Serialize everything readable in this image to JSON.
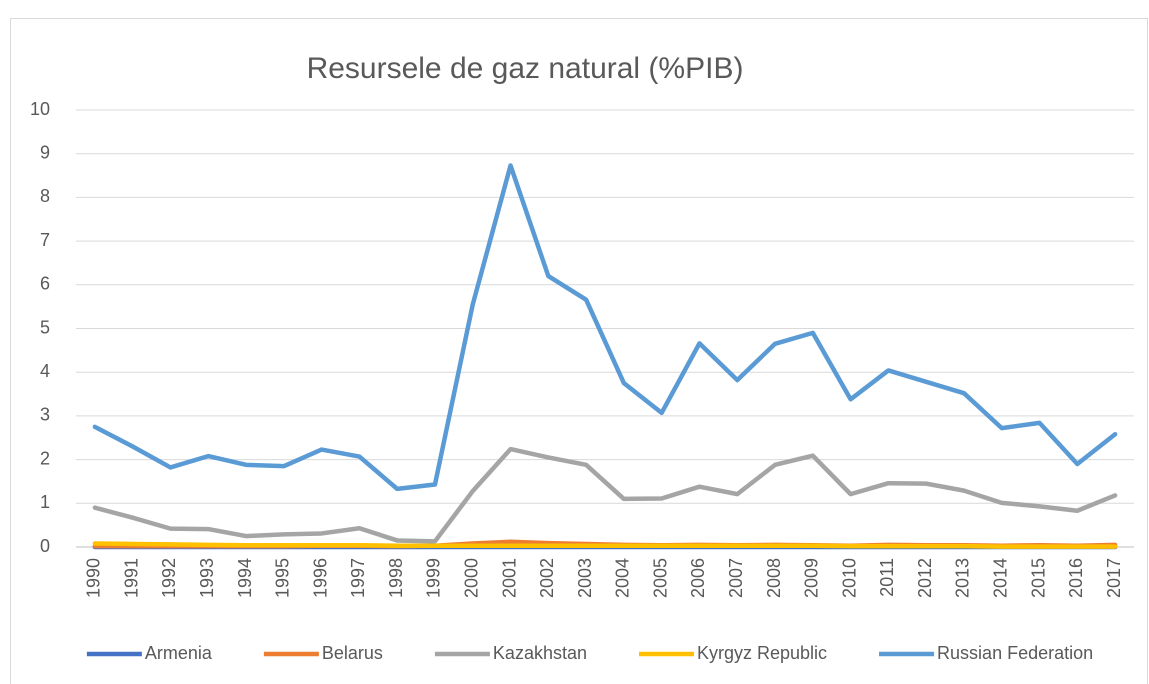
{
  "chart_data": {
    "type": "line",
    "title": "Resursele de gaz natural (%PIB)",
    "categories": [
      "1990",
      "1991",
      "1992",
      "1993",
      "1994",
      "1995",
      "1996",
      "1997",
      "1998",
      "1999",
      "2000",
      "2001",
      "2002",
      "2003",
      "2004",
      "2005",
      "2006",
      "2007",
      "2008",
      "2009",
      "2010",
      "2011",
      "2012",
      "2013",
      "2014",
      "2015",
      "2016",
      "2017"
    ],
    "series": [
      {
        "name": "Armenia",
        "color": "#4472c4",
        "values": [
          0,
          0,
          0,
          0,
          0,
          0,
          0,
          0,
          0,
          0,
          0,
          0,
          0,
          0,
          0,
          0,
          0,
          0,
          0,
          0,
          0,
          0,
          0,
          0,
          0,
          0,
          0,
          0
        ]
      },
      {
        "name": "Belarus",
        "color": "#ed7d31",
        "values": [
          0.02,
          0.02,
          0.02,
          0.02,
          0.02,
          0.02,
          0.03,
          0.03,
          0.02,
          0.03,
          0.08,
          0.12,
          0.09,
          0.07,
          0.05,
          0.04,
          0.05,
          0.04,
          0.05,
          0.04,
          0.03,
          0.05,
          0.04,
          0.04,
          0.03,
          0.04,
          0.03,
          0.05
        ]
      },
      {
        "name": "Kazakhstan",
        "color": "#a5a5a5",
        "values": [
          0.9,
          0.67,
          0.42,
          0.41,
          0.25,
          0.29,
          0.31,
          0.43,
          0.15,
          0.13,
          1.28,
          2.24,
          2.05,
          1.88,
          1.1,
          1.11,
          1.38,
          1.21,
          1.88,
          2.09,
          1.21,
          1.46,
          1.45,
          1.29,
          1.01,
          0.93,
          0.83,
          1.18
        ]
      },
      {
        "name": "Kyrgyz Republic",
        "color": "#ffc000",
        "values": [
          0.08,
          0.07,
          0.06,
          0.05,
          0.04,
          0.04,
          0.04,
          0.04,
          0.03,
          0.03,
          0.03,
          0.03,
          0.03,
          0.03,
          0.03,
          0.03,
          0.03,
          0.03,
          0.03,
          0.03,
          0.02,
          0.02,
          0.02,
          0.02,
          0.01,
          0.01,
          0.01,
          0.01
        ]
      },
      {
        "name": "Russian Federation",
        "color": "#5b9bd5",
        "values": [
          2.75,
          2.3,
          1.82,
          2.08,
          1.88,
          1.85,
          2.23,
          2.07,
          1.33,
          1.43,
          5.55,
          8.73,
          6.2,
          5.66,
          3.75,
          3.07,
          4.66,
          3.82,
          4.65,
          4.9,
          3.38,
          4.04,
          3.78,
          3.52,
          2.72,
          2.84,
          1.9,
          2.58
        ]
      }
    ],
    "ylim": [
      0,
      10
    ],
    "yticks": [
      0,
      1,
      2,
      3,
      4,
      5,
      6,
      7,
      8,
      9,
      10
    ],
    "grid": true,
    "legend": "bottom"
  }
}
